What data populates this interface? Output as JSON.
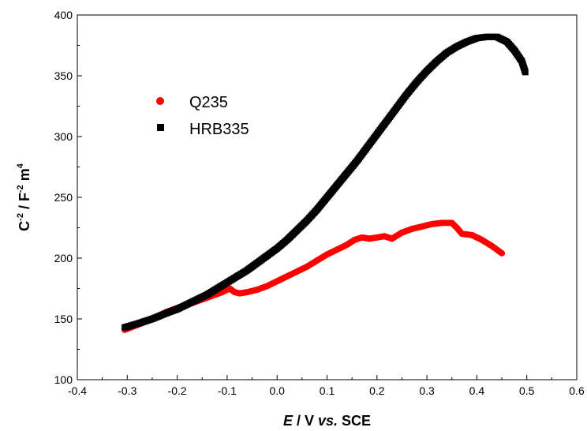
{
  "chart_data": {
    "type": "scatter",
    "xlim": [
      -0.4,
      0.6
    ],
    "ylim": [
      100,
      400
    ],
    "xticks": [
      "-0.4",
      "-0.3",
      "-0.2",
      "-0.1",
      "0.0",
      "0.1",
      "0.2",
      "0.3",
      "0.4",
      "0.5",
      "0.6"
    ],
    "yticks": [
      "100",
      "150",
      "200",
      "250",
      "300",
      "350",
      "400"
    ],
    "xlabel": {
      "italic": "E",
      "mid": " / V ",
      "italic2": "vs.",
      "tail": " SCE"
    },
    "ylabel": {
      "c": "C",
      "cexp": "-2",
      "sep": " / F",
      "fexp": "-2",
      "m": " m",
      "mexp": "4"
    },
    "legend_position": "upper-left",
    "grid": false,
    "series": [
      {
        "name": "Q235",
        "marker": "circle",
        "color": "#ff0000",
        "points": [
          [
            -0.305,
            141
          ],
          [
            -0.28,
            145
          ],
          [
            -0.25,
            150
          ],
          [
            -0.22,
            156
          ],
          [
            -0.2,
            159
          ],
          [
            -0.17,
            163
          ],
          [
            -0.15,
            166
          ],
          [
            -0.13,
            169
          ],
          [
            -0.11,
            172
          ],
          [
            -0.095,
            175
          ],
          [
            -0.085,
            172
          ],
          [
            -0.075,
            171
          ],
          [
            -0.06,
            172
          ],
          [
            -0.04,
            174
          ],
          [
            -0.02,
            177
          ],
          [
            0.0,
            181
          ],
          [
            0.02,
            185
          ],
          [
            0.04,
            189
          ],
          [
            0.06,
            193
          ],
          [
            0.08,
            198
          ],
          [
            0.1,
            203
          ],
          [
            0.12,
            207
          ],
          [
            0.14,
            211
          ],
          [
            0.155,
            215
          ],
          [
            0.17,
            217
          ],
          [
            0.185,
            216
          ],
          [
            0.2,
            217
          ],
          [
            0.215,
            218
          ],
          [
            0.23,
            216
          ],
          [
            0.25,
            221
          ],
          [
            0.27,
            224
          ],
          [
            0.29,
            226
          ],
          [
            0.31,
            228
          ],
          [
            0.33,
            229
          ],
          [
            0.35,
            229
          ],
          [
            0.36,
            225
          ],
          [
            0.37,
            220
          ],
          [
            0.39,
            219
          ],
          [
            0.41,
            215
          ],
          [
            0.43,
            210
          ],
          [
            0.45,
            204
          ]
        ]
      },
      {
        "name": "HRB335",
        "marker": "square",
        "color": "#000000",
        "points": [
          [
            -0.305,
            143
          ],
          [
            -0.28,
            146
          ],
          [
            -0.25,
            150
          ],
          [
            -0.22,
            155
          ],
          [
            -0.2,
            158
          ],
          [
            -0.18,
            162
          ],
          [
            -0.16,
            166
          ],
          [
            -0.14,
            170
          ],
          [
            -0.12,
            175
          ],
          [
            -0.1,
            180
          ],
          [
            -0.08,
            185
          ],
          [
            -0.06,
            190
          ],
          [
            -0.04,
            196
          ],
          [
            -0.02,
            202
          ],
          [
            0.0,
            208
          ],
          [
            0.02,
            215
          ],
          [
            0.04,
            223
          ],
          [
            0.06,
            231
          ],
          [
            0.08,
            240
          ],
          [
            0.1,
            250
          ],
          [
            0.12,
            260
          ],
          [
            0.14,
            270
          ],
          [
            0.16,
            280
          ],
          [
            0.18,
            291
          ],
          [
            0.2,
            302
          ],
          [
            0.22,
            313
          ],
          [
            0.24,
            324
          ],
          [
            0.26,
            335
          ],
          [
            0.28,
            345
          ],
          [
            0.3,
            354
          ],
          [
            0.32,
            362
          ],
          [
            0.34,
            369
          ],
          [
            0.36,
            374
          ],
          [
            0.38,
            378
          ],
          [
            0.4,
            381
          ],
          [
            0.42,
            382
          ],
          [
            0.44,
            382
          ],
          [
            0.46,
            378
          ],
          [
            0.475,
            371
          ],
          [
            0.49,
            362
          ],
          [
            0.497,
            353
          ]
        ]
      }
    ]
  }
}
